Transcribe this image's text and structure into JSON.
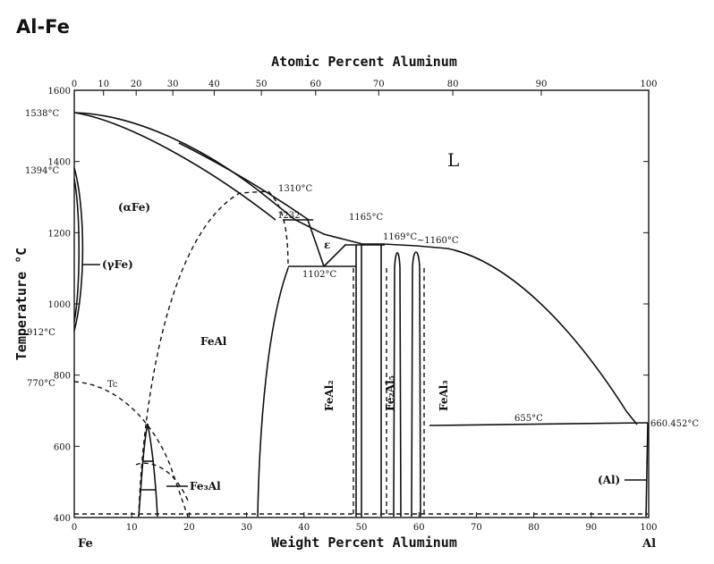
{
  "title": "Al-Fe",
  "x_axis_title": "Weight Percent Aluminum",
  "top_axis_title": "Atomic Percent Aluminum",
  "y_axis_title": "Temperature °C",
  "endpoints": {
    "left": "Fe",
    "right": "Al"
  },
  "x_ticks": [
    {
      "value": 0,
      "label": "0"
    },
    {
      "value": 10,
      "label": "10"
    },
    {
      "value": 20,
      "label": "20"
    },
    {
      "value": 30,
      "label": "30"
    },
    {
      "value": 40,
      "label": "40"
    },
    {
      "value": 50,
      "label": "50"
    },
    {
      "value": 60,
      "label": "60"
    },
    {
      "value": 70,
      "label": "70"
    },
    {
      "value": 80,
      "label": "80"
    },
    {
      "value": 90,
      "label": "90"
    },
    {
      "value": 100,
      "label": "100"
    }
  ],
  "top_ticks": [
    {
      "value": 0,
      "label": "0"
    },
    {
      "value": 10,
      "label": "10"
    },
    {
      "value": 20,
      "label": "20"
    },
    {
      "value": 30,
      "label": "30"
    },
    {
      "value": 40,
      "label": "40"
    },
    {
      "value": 50,
      "label": "50"
    },
    {
      "value": 60,
      "label": "60"
    },
    {
      "value": 70,
      "label": "70"
    },
    {
      "value": 80,
      "label": "80"
    },
    {
      "value": 90,
      "label": "90"
    },
    {
      "value": 100,
      "label": "100"
    }
  ],
  "y_ticks": [
    {
      "value": 400,
      "label": "400"
    },
    {
      "value": 600,
      "label": "600"
    },
    {
      "value": 800,
      "label": "800"
    },
    {
      "value": 1000,
      "label": "1000"
    },
    {
      "value": 1200,
      "label": "1200"
    },
    {
      "value": 1400,
      "label": "1400"
    },
    {
      "value": 1600,
      "label": "1600"
    }
  ],
  "phase_labels": {
    "liquid": "L",
    "alpha_fe": "(αFe)",
    "gamma_fe": "(γFe)",
    "feal": "FeAl",
    "epsilon": "ε",
    "fe3al": "Fe₃Al",
    "feal2": "FeAl₂",
    "fe2al5": "Fe₂Al₅",
    "feal3": "FeAl₃",
    "al": "(Al)",
    "tc": "Tc"
  },
  "temperature_annotations": {
    "fe_melting": "1538°C",
    "gamma_delta": "1394°C",
    "alpha_gamma": "912°C",
    "curie": "770°C",
    "feal_max": "1310°C",
    "peritectic": "1232",
    "eutectoid": "1102°C",
    "feal2_peritectic": "1165°C",
    "fe2al5_melt": "1169°C",
    "feal3_melt": "~1160°C",
    "eutectic_al": "655°C",
    "al_melting": "660.452°C"
  }
}
